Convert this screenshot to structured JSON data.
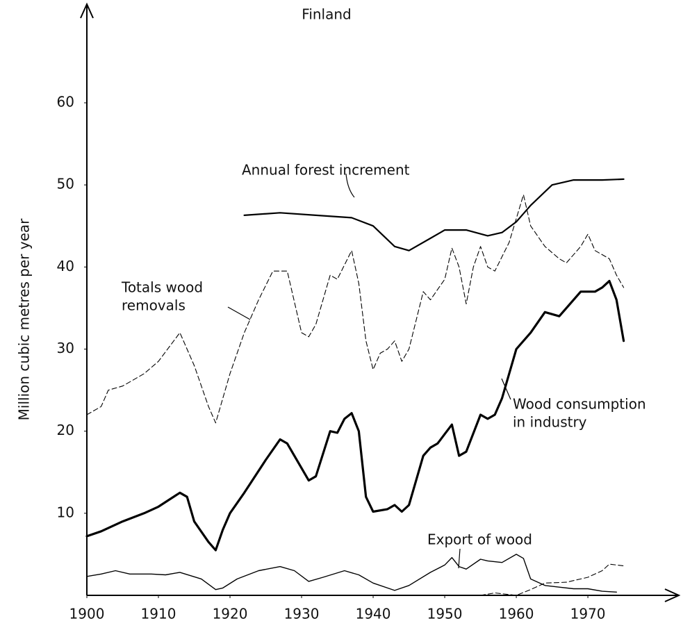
{
  "chart_data": {
    "type": "line",
    "title": "Finland",
    "y_label": "Million cubic metres per year",
    "xlim": [
      1900,
      1983
    ],
    "ylim": [
      0,
      71
    ],
    "xticks": [
      1900,
      1910,
      1920,
      1930,
      1940,
      1950,
      1960,
      1970
    ],
    "yticks": [
      10,
      20,
      30,
      40,
      50,
      60
    ],
    "series": [
      {
        "label": [
          "Annual forest increment"
        ],
        "color": "#000000",
        "style": "solid",
        "line_width": 2.2,
        "x": [
          1922,
          1927,
          1932,
          1937,
          1940,
          1943,
          1945,
          1948,
          1950,
          1953,
          1956,
          1958,
          1960,
          1962,
          1965,
          1968,
          1972,
          1975
        ],
        "values": [
          46.3,
          46.6,
          46.3,
          46,
          45,
          42.5,
          42,
          43.5,
          44.5,
          44.5,
          43.8,
          44.2,
          45.5,
          47.5,
          50,
          50.6,
          50.6,
          50.7
        ]
      },
      {
        "label": [
          "Totals wood",
          "removals"
        ],
        "color": "#000000",
        "style": "dashed",
        "line_width": 1.1,
        "x": [
          1900,
          1902,
          1903,
          1905,
          1908,
          1910,
          1913,
          1915,
          1917,
          1918,
          1920,
          1922,
          1924,
          1926,
          1928,
          1930,
          1931,
          1932,
          1934,
          1935,
          1937,
          1938,
          1939,
          1940,
          1941,
          1942,
          1943,
          1944,
          1945,
          1947,
          1948,
          1950,
          1951,
          1952,
          1953,
          1954,
          1955,
          1956,
          1957,
          1959,
          1961,
          1962,
          1964,
          1966,
          1967,
          1969,
          1970,
          1971,
          1973,
          1974,
          1975
        ],
        "values": [
          22,
          23,
          25,
          25.5,
          27,
          28.5,
          32,
          28,
          23,
          21,
          27,
          32,
          36,
          39.5,
          39.5,
          32,
          31.5,
          33,
          39,
          38.5,
          42,
          38,
          31,
          27.5,
          29.5,
          30,
          31,
          28.5,
          30,
          37,
          36,
          38.5,
          42.3,
          40,
          35.5,
          40,
          42.5,
          40,
          39.5,
          43,
          48.8,
          45,
          42.5,
          41,
          40.5,
          42.5,
          44,
          42,
          41,
          39,
          37.5
        ]
      },
      {
        "label": [
          "Wood consumption",
          "in industry"
        ],
        "color": "#000000",
        "style": "solid",
        "line_width": 3.2,
        "x": [
          1900,
          1902,
          1905,
          1908,
          1910,
          1913,
          1914,
          1915,
          1917,
          1918,
          1919,
          1920,
          1922,
          1925,
          1927,
          1928,
          1931,
          1932,
          1934,
          1935,
          1936,
          1937,
          1938,
          1939,
          1940,
          1942,
          1943,
          1944,
          1945,
          1947,
          1948,
          1949,
          1951,
          1952,
          1953,
          1955,
          1956,
          1957,
          1958,
          1960,
          1962,
          1964,
          1966,
          1967,
          1969,
          1971,
          1972,
          1973,
          1974,
          1975
        ],
        "values": [
          7.2,
          7.8,
          9,
          10,
          10.8,
          12.5,
          12,
          9,
          6.5,
          5.5,
          8,
          10,
          12.5,
          16.5,
          19,
          18.5,
          14,
          14.5,
          20,
          19.8,
          21.5,
          22.2,
          20,
          12,
          10.2,
          10.5,
          11,
          10.2,
          11,
          17,
          18,
          18.5,
          20.8,
          17,
          17.5,
          22,
          21.5,
          22,
          24,
          30,
          32,
          34.5,
          34,
          35,
          37,
          37,
          37.5,
          38.3,
          36,
          31
        ]
      },
      {
        "label": [
          "Export of wood"
        ],
        "color": "#000000",
        "style": "solid",
        "line_width": 1.4,
        "x": [
          1900,
          1902,
          1904,
          1906,
          1909,
          1911,
          1913,
          1916,
          1918,
          1919,
          1921,
          1924,
          1927,
          1929,
          1931,
          1933,
          1936,
          1938,
          1940,
          1943,
          1945,
          1948,
          1950,
          1951,
          1952,
          1953,
          1955,
          1956,
          1958,
          1960,
          1961,
          1962,
          1964,
          1966,
          1968,
          1970,
          1972,
          1974
        ],
        "values": [
          2.3,
          2.6,
          3,
          2.6,
          2.6,
          2.5,
          2.8,
          2,
          0.7,
          0.9,
          2,
          3,
          3.5,
          3,
          1.7,
          2.2,
          3,
          2.5,
          1.5,
          0.6,
          1.2,
          2.8,
          3.7,
          4.6,
          3.5,
          3.2,
          4.4,
          4.2,
          4,
          5,
          4.5,
          2,
          1.2,
          1,
          0.8,
          0.8,
          0.5,
          0.4
        ]
      },
      {
        "color": "#000000",
        "style": "dashed",
        "line_width": 1.1,
        "x": [
          1955,
          1957,
          1960,
          1962,
          1964,
          1967,
          1970,
          1972,
          1973,
          1975
        ],
        "values": [
          0,
          0.3,
          0,
          0.7,
          1.5,
          1.6,
          2.2,
          3,
          3.8,
          3.6
        ]
      }
    ]
  }
}
